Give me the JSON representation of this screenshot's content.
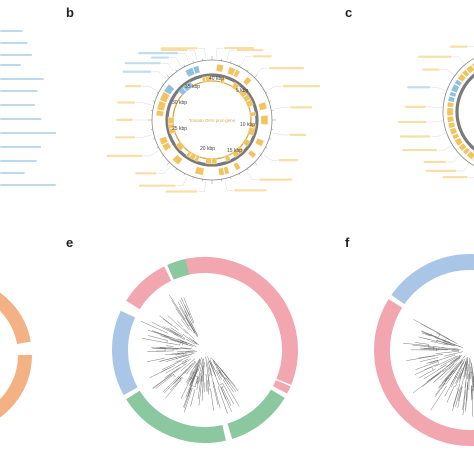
{
  "panels": [
    {
      "letter": "b",
      "type": "genome-map"
    },
    {
      "letter": "c",
      "type": "genome-map"
    },
    {
      "letter": "e",
      "type": "phylogenetic-tree"
    },
    {
      "letter": "f",
      "type": "phylogenetic-tree"
    }
  ],
  "genome_map_b": {
    "tick_labels": [
      "40 kbp",
      "5 kbp",
      "10 kbp",
      "15 kbp",
      "20 kbp",
      "25 kbp",
      "30 kbp",
      "35 kbp"
    ],
    "center_label": "Tomato OHV prot-gene",
    "orf_color": "#f2c45f",
    "highlight_color": "#8fc1dd",
    "ring_color": "#7a7a7a"
  },
  "tree_colors": {
    "pink": "#f2a7b0",
    "green": "#8cc89f",
    "blue": "#a9c6e6",
    "orange": "#f4b183",
    "branch": "#6a6a6a"
  },
  "panel_e_ring": [
    {
      "clade": "pink",
      "start": -20,
      "end": 112
    },
    {
      "clade": "pink",
      "start": 113,
      "end": 118
    },
    {
      "clade": "green",
      "start": 121,
      "end": 163
    },
    {
      "clade": "green",
      "start": 167,
      "end": 238
    },
    {
      "clade": "blue",
      "start": 241,
      "end": 295
    },
    {
      "clade": "pink",
      "start": 302,
      "end": 334
    },
    {
      "clade": "green",
      "start": 336,
      "end": 348
    }
  ],
  "panel_f_ring": [
    {
      "clade": "pink",
      "start": 120,
      "end": 302
    },
    {
      "clade": "blue",
      "start": 305,
      "end": 420
    }
  ],
  "panel_d_ring": [
    {
      "clade": "orange",
      "start": 15,
      "end": 80
    },
    {
      "clade": "orange",
      "start": 90,
      "end": 160
    }
  ]
}
